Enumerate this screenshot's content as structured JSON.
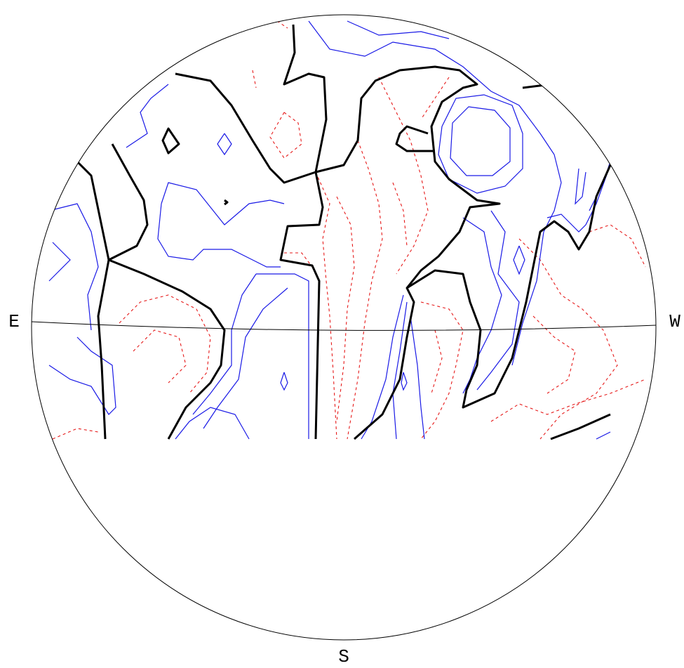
{
  "labels": {
    "east": "E",
    "west": "W",
    "south": "S"
  }
}
